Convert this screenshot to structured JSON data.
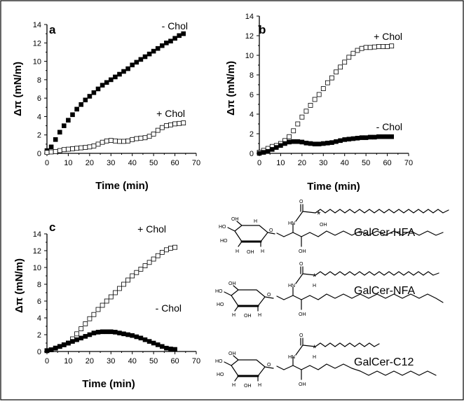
{
  "chart_data": [
    {
      "panel": "a",
      "type": "scatter",
      "xlabel": "Time (min)",
      "ylabel": "Δπ (mN/m)",
      "xlim": [
        0,
        70
      ],
      "ylim": [
        0,
        14
      ],
      "xticks": [
        "0",
        "10",
        "20",
        "30",
        "40",
        "50",
        "60",
        "70"
      ],
      "yticks": [
        "0",
        "2",
        "4",
        "6",
        "8",
        "10",
        "12",
        "14"
      ],
      "series": [
        {
          "name": "- Chol",
          "marker": "filled-square",
          "x": [
            0,
            2,
            4,
            6,
            8,
            10,
            12,
            14,
            16,
            18,
            20,
            22,
            24,
            26,
            28,
            30,
            32,
            34,
            36,
            38,
            40,
            42,
            44,
            46,
            48,
            50,
            52,
            54,
            56,
            58,
            60,
            62,
            64
          ],
          "y": [
            0.3,
            0.7,
            1.5,
            2.3,
            3.0,
            3.6,
            4.2,
            4.8,
            5.3,
            5.8,
            6.2,
            6.6,
            7.0,
            7.4,
            7.7,
            8.0,
            8.3,
            8.6,
            8.9,
            9.2,
            9.6,
            9.9,
            10.2,
            10.5,
            10.8,
            11.1,
            11.4,
            11.7,
            12.0,
            12.2,
            12.5,
            12.8,
            13.0
          ]
        },
        {
          "name": "+ Chol",
          "marker": "open-square",
          "x": [
            0,
            2,
            4,
            6,
            8,
            10,
            12,
            14,
            16,
            18,
            20,
            22,
            24,
            26,
            28,
            30,
            32,
            34,
            36,
            38,
            40,
            42,
            44,
            46,
            48,
            50,
            52,
            54,
            56,
            58,
            60,
            62,
            64
          ],
          "y": [
            0.1,
            0.15,
            0.2,
            0.3,
            0.4,
            0.45,
            0.5,
            0.55,
            0.6,
            0.65,
            0.7,
            0.8,
            1.0,
            1.2,
            1.35,
            1.4,
            1.35,
            1.3,
            1.3,
            1.35,
            1.5,
            1.6,
            1.65,
            1.7,
            1.85,
            2.1,
            2.5,
            2.8,
            3.0,
            3.1,
            3.2,
            3.25,
            3.3
          ]
        }
      ]
    },
    {
      "panel": "b",
      "type": "scatter",
      "xlabel": "Time (min)",
      "ylabel": "Δπ (mN/m)",
      "xlim": [
        0,
        70
      ],
      "ylim": [
        0,
        14
      ],
      "xticks": [
        "0",
        "10",
        "20",
        "30",
        "40",
        "50",
        "60",
        "70"
      ],
      "yticks": [
        "0",
        "2",
        "4",
        "6",
        "8",
        "10",
        "12",
        "14"
      ],
      "series": [
        {
          "name": "+ Chol",
          "marker": "open-square",
          "x": [
            0,
            2,
            4,
            6,
            8,
            10,
            12,
            14,
            16,
            18,
            20,
            22,
            24,
            26,
            28,
            30,
            32,
            34,
            36,
            38,
            40,
            42,
            44,
            46,
            48,
            50,
            52,
            54,
            56,
            58,
            60,
            62
          ],
          "y": [
            0.1,
            0.3,
            0.5,
            0.7,
            0.8,
            1.0,
            1.3,
            1.7,
            2.3,
            3.0,
            3.7,
            4.3,
            4.9,
            5.5,
            6.0,
            6.6,
            7.2,
            7.7,
            8.3,
            8.8,
            9.3,
            9.8,
            10.2,
            10.5,
            10.7,
            10.8,
            10.8,
            10.85,
            10.9,
            10.9,
            10.9,
            10.95
          ]
        },
        {
          "name": "- Chol",
          "marker": "filled-square",
          "x": [
            0,
            2,
            4,
            6,
            8,
            10,
            12,
            14,
            16,
            18,
            20,
            22,
            24,
            26,
            28,
            30,
            32,
            34,
            36,
            38,
            40,
            42,
            44,
            46,
            48,
            50,
            52,
            54,
            56,
            58,
            60,
            62
          ],
          "y": [
            0.0,
            0.1,
            0.2,
            0.4,
            0.6,
            0.8,
            1.0,
            1.15,
            1.2,
            1.2,
            1.15,
            1.05,
            1.0,
            0.95,
            0.95,
            1.0,
            1.05,
            1.1,
            1.2,
            1.3,
            1.4,
            1.45,
            1.5,
            1.55,
            1.6,
            1.6,
            1.65,
            1.65,
            1.7,
            1.7,
            1.7,
            1.7
          ]
        }
      ]
    },
    {
      "panel": "c",
      "type": "scatter",
      "xlabel": "Time (min)",
      "ylabel": "Δπ (mN/m)",
      "xlim": [
        0,
        70
      ],
      "ylim": [
        0,
        14
      ],
      "xticks": [
        "0",
        "10",
        "20",
        "30",
        "40",
        "50",
        "60",
        "70"
      ],
      "yticks": [
        "0",
        "2",
        "4",
        "6",
        "8",
        "10",
        "12",
        "14"
      ],
      "series": [
        {
          "name": "+ Chol",
          "marker": "open-square",
          "x": [
            0,
            2,
            4,
            6,
            8,
            10,
            12,
            14,
            16,
            18,
            20,
            22,
            24,
            26,
            28,
            30,
            32,
            34,
            36,
            38,
            40,
            42,
            44,
            46,
            48,
            50,
            52,
            54,
            56,
            58,
            60
          ],
          "y": [
            0.1,
            0.2,
            0.4,
            0.6,
            0.8,
            1.0,
            1.5,
            2.1,
            2.7,
            3.3,
            3.9,
            4.4,
            5.0,
            5.5,
            6.0,
            6.5,
            7.0,
            7.5,
            8.0,
            8.5,
            9.0,
            9.4,
            9.8,
            10.2,
            10.6,
            11.0,
            11.4,
            11.8,
            12.1,
            12.3,
            12.4
          ]
        },
        {
          "name": "- Chol",
          "marker": "filled-square",
          "x": [
            0,
            2,
            4,
            6,
            8,
            10,
            12,
            14,
            16,
            18,
            20,
            22,
            24,
            26,
            28,
            30,
            32,
            34,
            36,
            38,
            40,
            42,
            44,
            46,
            48,
            50,
            52,
            54,
            56,
            58,
            60
          ],
          "y": [
            0.1,
            0.2,
            0.4,
            0.6,
            0.8,
            1.0,
            1.2,
            1.4,
            1.6,
            1.8,
            2.0,
            2.2,
            2.3,
            2.35,
            2.35,
            2.35,
            2.3,
            2.2,
            2.1,
            2.0,
            1.9,
            1.75,
            1.6,
            1.4,
            1.2,
            1.0,
            0.8,
            0.6,
            0.4,
            0.3,
            0.25
          ]
        }
      ]
    }
  ],
  "molecules": {
    "hfa": {
      "name": "GalCer-HFA",
      "atoms": [
        "O",
        "HN",
        "OH",
        "OH",
        "H",
        "H",
        "HO",
        "HO",
        "OH",
        "OH",
        "H",
        "H",
        "H",
        "H",
        "H",
        "O"
      ]
    },
    "nfa": {
      "name": "GalCer-NFA",
      "atoms": [
        "O",
        "HN",
        "H",
        "OH",
        "H",
        "HO",
        "HO",
        "OH",
        "OH",
        "H",
        "H",
        "H",
        "H",
        "H",
        "O"
      ]
    },
    "c12": {
      "name": "GalCer-C12",
      "atoms": [
        "O",
        "HN",
        "H",
        "OH",
        "H",
        "HO",
        "HO",
        "OH",
        "OH",
        "H",
        "H",
        "H",
        "H",
        "H",
        "O"
      ]
    },
    "stereo_mark": "*"
  }
}
